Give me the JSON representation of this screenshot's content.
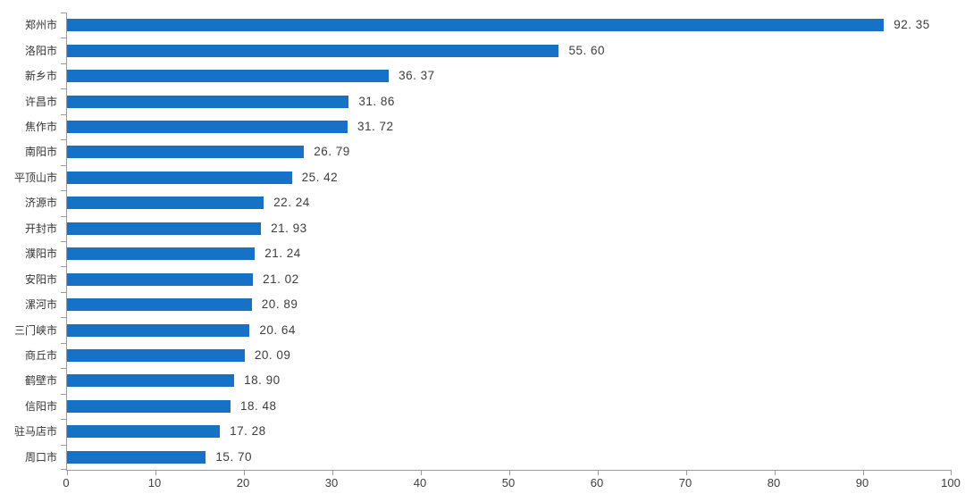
{
  "chart_data": {
    "type": "bar",
    "orientation": "horizontal",
    "title": "",
    "xlabel": "",
    "ylabel": "",
    "grid": false,
    "legend": null,
    "xlim": [
      0,
      100
    ],
    "x_ticks": [
      0,
      10,
      20,
      30,
      40,
      50,
      60,
      70,
      80,
      90,
      100
    ],
    "categories": [
      "郑州市",
      "洛阳市",
      "新乡市",
      "许昌市",
      "焦作市",
      "南阳市",
      "平顶山市",
      "济源市",
      "开封市",
      "濮阳市",
      "安阳市",
      "漯河市",
      "三门峡市",
      "商丘市",
      "鹤壁市",
      "信阳市",
      "驻马店市",
      "周口市"
    ],
    "values": [
      92.35,
      55.6,
      36.37,
      31.86,
      31.72,
      26.79,
      25.42,
      22.24,
      21.93,
      21.24,
      21.02,
      20.89,
      20.64,
      20.09,
      18.9,
      18.48,
      17.28,
      15.7
    ],
    "value_labels": [
      "92. 35",
      "55. 60",
      "36. 37",
      "31. 86",
      "31. 72",
      "26. 79",
      "25. 42",
      "22. 24",
      "21. 93",
      "21. 24",
      "21. 02",
      "20. 89",
      "20. 64",
      "20. 09",
      "18. 90",
      "18. 48",
      "17. 28",
      "15. 70"
    ],
    "colors": {
      "bar": "#1572C6",
      "axis": "#9b9b9b",
      "text": "#3d3d3d"
    }
  }
}
